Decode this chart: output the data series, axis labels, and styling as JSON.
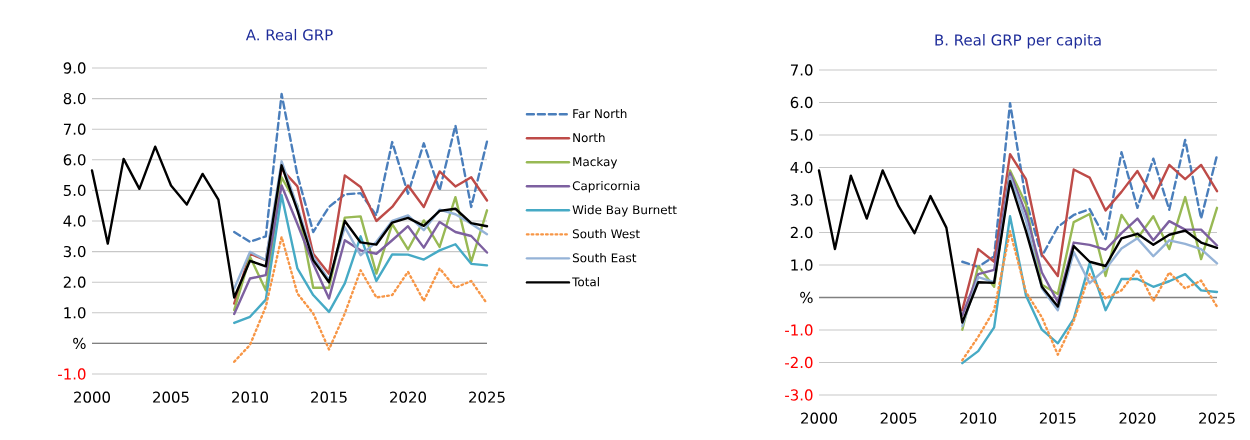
{
  "chart_data": [
    {
      "type": "line",
      "title": "A.   Real GRP",
      "x": [
        2000,
        2001,
        2002,
        2003,
        2004,
        2005,
        2006,
        2007,
        2008,
        2009,
        2010,
        2011,
        2012,
        2013,
        2014,
        2015,
        2016,
        2017,
        2018,
        2019,
        2020,
        2021,
        2022,
        2023,
        2024,
        2025
      ],
      "xlim": [
        2000,
        2025
      ],
      "xticks": [
        2000,
        2005,
        2010,
        2015,
        2020,
        2025
      ],
      "ylim": [
        -1,
        9
      ],
      "yticks": [
        {
          "value": -1,
          "label": "-1.0"
        },
        {
          "value": 0,
          "label": "%"
        },
        {
          "value": 1,
          "label": "1.0"
        },
        {
          "value": 2,
          "label": "2.0"
        },
        {
          "value": 3,
          "label": "3.0"
        },
        {
          "value": 4,
          "label": "4.0"
        },
        {
          "value": 5,
          "label": "5.0"
        },
        {
          "value": 6,
          "label": "6.0"
        },
        {
          "value": 7,
          "label": "7.0"
        },
        {
          "value": 8,
          "label": "8.0"
        },
        {
          "value": 9,
          "label": "9.0"
        }
      ],
      "grid": "y",
      "legend": "right",
      "marker": "none",
      "series": [
        {
          "name": "Far North",
          "color": "#4a7ebb",
          "line_style": "dashed",
          "values": [
            null,
            null,
            null,
            null,
            null,
            null,
            null,
            null,
            null,
            3.64,
            3.32,
            3.5,
            8.15,
            5.5,
            3.64,
            4.46,
            4.87,
            4.91,
            4.18,
            6.58,
            4.89,
            6.54,
            5.0,
            7.12,
            4.46,
            6.6
          ]
        },
        {
          "name": "North",
          "color": "#be4b48",
          "line_style": "solid",
          "values": [
            null,
            null,
            null,
            null,
            null,
            null,
            null,
            null,
            null,
            1.3,
            2.93,
            2.72,
            5.7,
            5.13,
            2.93,
            2.28,
            5.49,
            5.11,
            4.0,
            4.46,
            5.16,
            4.46,
            5.62,
            5.13,
            5.43,
            4.67
          ]
        },
        {
          "name": "Mackay",
          "color": "#98b954",
          "line_style": "solid",
          "values": [
            null,
            null,
            null,
            null,
            null,
            null,
            null,
            null,
            null,
            1.09,
            2.83,
            1.74,
            5.43,
            4.5,
            1.82,
            1.82,
            4.11,
            4.15,
            2.28,
            3.9,
            3.07,
            4.02,
            3.15,
            4.78,
            2.66,
            4.35
          ]
        },
        {
          "name": "Capricornia",
          "color": "#7d60a0",
          "line_style": "solid",
          "values": [
            null,
            null,
            null,
            null,
            null,
            null,
            null,
            null,
            null,
            0.96,
            2.12,
            2.23,
            5.16,
            3.9,
            2.6,
            1.47,
            3.37,
            3.04,
            2.93,
            3.37,
            3.83,
            3.13,
            3.97,
            3.64,
            3.51,
            2.97
          ]
        },
        {
          "name": "Wide Bay Burnett",
          "color": "#46aac5",
          "line_style": "solid",
          "values": [
            null,
            null,
            null,
            null,
            null,
            null,
            null,
            null,
            null,
            0.67,
            0.87,
            1.43,
            4.84,
            2.45,
            1.58,
            1.03,
            1.96,
            3.5,
            2.04,
            2.91,
            2.9,
            2.74,
            3.04,
            3.24,
            2.6,
            2.55
          ]
        },
        {
          "name": "South West",
          "color": "#f79646",
          "line_style": "dotted",
          "values": [
            null,
            null,
            null,
            null,
            null,
            null,
            null,
            null,
            null,
            -0.6,
            -0.05,
            1.2,
            3.48,
            1.63,
            0.98,
            -0.2,
            0.98,
            2.39,
            1.5,
            1.58,
            2.34,
            1.39,
            2.45,
            1.82,
            2.04,
            1.3
          ]
        },
        {
          "name": "South East",
          "color": "#95b3d7",
          "line_style": "solid",
          "values": [
            null,
            null,
            null,
            null,
            null,
            null,
            null,
            null,
            null,
            1.79,
            2.99,
            2.72,
            5.95,
            4.46,
            2.83,
            2.07,
            3.8,
            2.88,
            3.32,
            4.0,
            4.18,
            3.7,
            4.37,
            4.22,
            3.91,
            3.57
          ]
        },
        {
          "name": "Total",
          "color": "#000000",
          "line_style": "solid",
          "values": [
            5.65,
            3.26,
            6.03,
            5.05,
            6.43,
            5.16,
            4.54,
            5.54,
            4.7,
            1.5,
            2.7,
            2.52,
            5.82,
            4.35,
            2.72,
            2.0,
            4.0,
            3.3,
            3.23,
            3.95,
            4.1,
            3.84,
            4.33,
            4.4,
            3.93,
            3.83
          ]
        }
      ]
    },
    {
      "type": "line",
      "title": "B.   Real GRP per capita",
      "x": [
        2000,
        2001,
        2002,
        2003,
        2004,
        2005,
        2006,
        2007,
        2008,
        2009,
        2010,
        2011,
        2012,
        2013,
        2014,
        2015,
        2016,
        2017,
        2018,
        2019,
        2020,
        2021,
        2022,
        2023,
        2024,
        2025
      ],
      "xlim": [
        2000,
        2025
      ],
      "xticks": [
        2000,
        2005,
        2010,
        2015,
        2020,
        2025
      ],
      "ylim": [
        -3,
        7
      ],
      "yticks": [
        {
          "value": -3,
          "label": "-3.0"
        },
        {
          "value": -2,
          "label": "-2.0"
        },
        {
          "value": -1,
          "label": "-1.0"
        },
        {
          "value": 0,
          "label": "%"
        },
        {
          "value": 1,
          "label": "1.0"
        },
        {
          "value": 2,
          "label": "2.0"
        },
        {
          "value": 3,
          "label": "3.0"
        },
        {
          "value": 4,
          "label": "4.0"
        },
        {
          "value": 5,
          "label": "5.0"
        },
        {
          "value": 6,
          "label": "6.0"
        },
        {
          "value": 7,
          "label": "7.0"
        }
      ],
      "grid": "y",
      "marker": "none",
      "series": [
        {
          "color": "#4a7ebb",
          "line_style": "dashed",
          "values": [
            null,
            null,
            null,
            null,
            null,
            null,
            null,
            null,
            null,
            1.1,
            0.94,
            1.27,
            5.98,
            3.0,
            1.27,
            2.17,
            2.54,
            2.72,
            1.8,
            4.47,
            2.76,
            4.27,
            2.7,
            4.85,
            2.43,
            4.38
          ]
        },
        {
          "color": "#be4b48",
          "line_style": "solid",
          "values": [
            null,
            null,
            null,
            null,
            null,
            null,
            null,
            null,
            null,
            -0.39,
            1.49,
            1.1,
            4.41,
            3.64,
            1.32,
            0.66,
            3.94,
            3.69,
            2.68,
            3.25,
            3.89,
            3.05,
            4.08,
            3.64,
            4.08,
            3.27
          ]
        },
        {
          "color": "#98b954",
          "line_style": "solid",
          "values": [
            null,
            null,
            null,
            null,
            null,
            null,
            null,
            null,
            null,
            -0.99,
            0.96,
            0.33,
            3.91,
            2.87,
            0.39,
            0.11,
            2.32,
            2.57,
            0.66,
            2.54,
            1.82,
            2.5,
            1.49,
            3.09,
            1.18,
            2.76
          ]
        },
        {
          "color": "#7d60a0",
          "line_style": "solid",
          "values": [
            null,
            null,
            null,
            null,
            null,
            null,
            null,
            null,
            null,
            -0.55,
            0.72,
            0.85,
            3.83,
            2.59,
            0.77,
            -0.14,
            1.69,
            1.62,
            1.47,
            1.98,
            2.43,
            1.76,
            2.35,
            2.09,
            2.09,
            1.6
          ]
        },
        {
          "color": "#46aac5",
          "line_style": "solid",
          "values": [
            null,
            null,
            null,
            null,
            null,
            null,
            null,
            null,
            null,
            -2.02,
            -1.65,
            -0.92,
            2.5,
            0.06,
            -0.99,
            -1.41,
            -0.66,
            1.05,
            -0.39,
            0.57,
            0.57,
            0.33,
            0.5,
            0.72,
            0.22,
            0.17
          ]
        },
        {
          "color": "#f79646",
          "line_style": "dotted",
          "values": [
            null,
            null,
            null,
            null,
            null,
            null,
            null,
            null,
            null,
            -1.93,
            -1.21,
            -0.39,
            2.04,
            0.17,
            -0.61,
            -1.76,
            -0.72,
            0.72,
            -0.03,
            0.22,
            0.85,
            -0.11,
            0.77,
            0.28,
            0.52,
            -0.28
          ]
        },
        {
          "color": "#95b3d7",
          "line_style": "solid",
          "values": [
            null,
            null,
            null,
            null,
            null,
            null,
            null,
            null,
            null,
            -0.88,
            0.63,
            0.47,
            3.72,
            2.37,
            0.28,
            -0.39,
            1.4,
            0.44,
            0.88,
            1.51,
            1.82,
            1.27,
            1.76,
            1.65,
            1.49,
            1.05
          ]
        },
        {
          "color": "#000000",
          "line_style": "solid",
          "values": [
            3.91,
            1.49,
            3.75,
            2.43,
            3.91,
            2.81,
            1.98,
            3.12,
            2.15,
            -0.77,
            0.47,
            0.45,
            3.58,
            2.04,
            0.33,
            -0.28,
            1.58,
            1.1,
            0.97,
            1.82,
            1.96,
            1.62,
            1.93,
            2.06,
            1.69,
            1.53
          ]
        }
      ]
    }
  ]
}
